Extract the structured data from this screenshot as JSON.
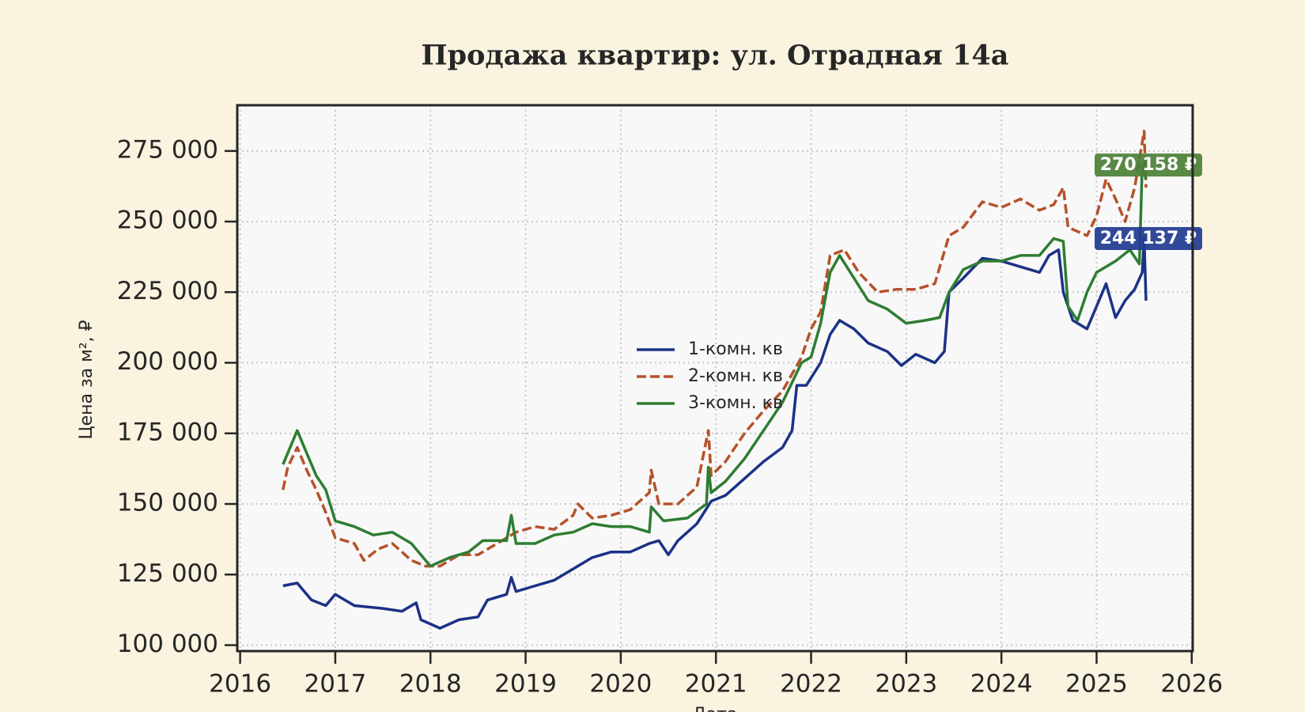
{
  "chart_data": {
    "type": "line",
    "title": "Продажа квартир: ул. Отрадная 14а",
    "x_label": "Дата",
    "y_label": "Цена за м², ₽",
    "xlim": [
      2015.97,
      2026.01
    ],
    "xticks": [
      2016,
      2017,
      2018,
      2019,
      2020,
      2021,
      2022,
      2023,
      2024,
      2025,
      2026
    ],
    "ylim": [
      97900,
      291200
    ],
    "yticks": [
      {
        "value": 100000,
        "label": "100 000"
      },
      {
        "value": 125000,
        "label": "125 000"
      },
      {
        "value": 150000,
        "label": "150 000"
      },
      {
        "value": 175000,
        "label": "175 000"
      },
      {
        "value": 200000,
        "label": "200 000"
      },
      {
        "value": 225000,
        "label": "225 000"
      },
      {
        "value": 250000,
        "label": "250 000"
      },
      {
        "value": 275000,
        "label": "275 000"
      }
    ],
    "grid": true,
    "legend": "center",
    "series": [
      {
        "name": "1-комн. кв",
        "color": "#1c3287",
        "style": "solid",
        "x": [
          2016.45,
          2016.6,
          2016.75,
          2016.9,
          2017.0,
          2017.2,
          2017.5,
          2017.7,
          2017.85,
          2017.9,
          2018.1,
          2018.3,
          2018.5,
          2018.6,
          2018.8,
          2018.85,
          2018.9,
          2019.1,
          2019.3,
          2019.5,
          2019.7,
          2019.9,
          2020.1,
          2020.3,
          2020.4,
          2020.5,
          2020.6,
          2020.8,
          2020.95,
          2021.1,
          2021.3,
          2021.5,
          2021.7,
          2021.8,
          2021.85,
          2021.95,
          2022.1,
          2022.2,
          2022.3,
          2022.45,
          2022.6,
          2022.8,
          2022.95,
          2023.1,
          2023.3,
          2023.4,
          2023.45,
          2023.6,
          2023.8,
          2024.0,
          2024.2,
          2024.4,
          2024.5,
          2024.6,
          2024.65,
          2024.75,
          2024.9,
          2025.0,
          2025.1,
          2025.2,
          2025.3,
          2025.4,
          2025.48,
          2025.5,
          2025.52
        ],
        "values": [
          121000,
          122000,
          116000,
          114000,
          118000,
          114000,
          113000,
          112000,
          115000,
          109000,
          106000,
          109000,
          110000,
          116000,
          118000,
          124000,
          119000,
          121000,
          123000,
          127000,
          131000,
          133000,
          133000,
          136000,
          137000,
          132000,
          137000,
          143000,
          151000,
          153000,
          159000,
          165000,
          170000,
          176000,
          192000,
          192000,
          200000,
          210000,
          215000,
          212000,
          207000,
          204000,
          199000,
          203000,
          200000,
          204000,
          225000,
          230000,
          237000,
          236000,
          234000,
          232000,
          238000,
          240000,
          225000,
          215000,
          212000,
          220000,
          228000,
          216000,
          222000,
          226000,
          232000,
          244000,
          222000
        ]
      },
      {
        "name": "2-комн. кв",
        "color": "#b5522a",
        "style": "dashed",
        "x": [
          2016.45,
          2016.5,
          2016.6,
          2016.7,
          2016.8,
          2016.9,
          2017.0,
          2017.2,
          2017.3,
          2017.45,
          2017.6,
          2017.8,
          2017.95,
          2018.1,
          2018.3,
          2018.5,
          2018.7,
          2018.9,
          2019.1,
          2019.3,
          2019.5,
          2019.55,
          2019.7,
          2019.9,
          2020.1,
          2020.3,
          2020.32,
          2020.4,
          2020.6,
          2020.8,
          2020.92,
          2020.95,
          2021.1,
          2021.3,
          2021.5,
          2021.7,
          2021.9,
          2022.0,
          2022.1,
          2022.2,
          2022.35,
          2022.5,
          2022.7,
          2022.9,
          2023.1,
          2023.3,
          2023.45,
          2023.6,
          2023.8,
          2024.0,
          2024.2,
          2024.4,
          2024.55,
          2024.65,
          2024.7,
          2024.9,
          2025.0,
          2025.1,
          2025.2,
          2025.3,
          2025.4,
          2025.5,
          2025.52
        ],
        "values": [
          155000,
          163000,
          170000,
          162000,
          155000,
          147000,
          138000,
          136000,
          130000,
          134000,
          136000,
          130000,
          128000,
          128000,
          132000,
          132000,
          136000,
          140000,
          142000,
          141000,
          146000,
          150000,
          145000,
          146000,
          148000,
          154000,
          162000,
          150000,
          150000,
          156000,
          176000,
          160000,
          165000,
          175000,
          183000,
          190000,
          202000,
          212000,
          218000,
          238000,
          240000,
          232000,
          225000,
          226000,
          226000,
          228000,
          245000,
          248000,
          257000,
          255000,
          258000,
          254000,
          256000,
          262000,
          248000,
          245000,
          252000,
          265000,
          258000,
          250000,
          262000,
          282000,
          262000
        ]
      },
      {
        "name": "3-комн. кв",
        "color": "#2e7d32",
        "style": "solid",
        "x": [
          2016.45,
          2016.5,
          2016.6,
          2016.7,
          2016.8,
          2016.9,
          2017.0,
          2017.2,
          2017.4,
          2017.6,
          2017.8,
          2018.0,
          2018.2,
          2018.4,
          2018.55,
          2018.8,
          2018.85,
          2018.9,
          2019.1,
          2019.3,
          2019.5,
          2019.7,
          2019.9,
          2020.1,
          2020.3,
          2020.32,
          2020.45,
          2020.7,
          2020.9,
          2020.92,
          2020.95,
          2021.1,
          2021.3,
          2021.5,
          2021.7,
          2021.9,
          2022.0,
          2022.1,
          2022.2,
          2022.3,
          2022.45,
          2022.6,
          2022.8,
          2023.0,
          2023.2,
          2023.35,
          2023.45,
          2023.6,
          2023.8,
          2024.0,
          2024.2,
          2024.4,
          2024.55,
          2024.65,
          2024.7,
          2024.8,
          2024.9,
          2025.0,
          2025.2,
          2025.35,
          2025.45,
          2025.48,
          2025.52
        ],
        "values": [
          164000,
          168000,
          176000,
          168000,
          160000,
          155000,
          144000,
          142000,
          139000,
          140000,
          136000,
          128000,
          131000,
          133000,
          137000,
          137000,
          146000,
          136000,
          136000,
          139000,
          140000,
          143000,
          142000,
          142000,
          140000,
          149000,
          144000,
          145000,
          150000,
          163000,
          154000,
          158000,
          166000,
          176000,
          186000,
          200000,
          202000,
          214000,
          232000,
          238000,
          230000,
          222000,
          219000,
          214000,
          215000,
          216000,
          225000,
          233000,
          236000,
          236000,
          238000,
          238000,
          244000,
          243000,
          220000,
          215000,
          225000,
          232000,
          236000,
          240000,
          235000,
          270000,
          265000
        ]
      }
    ],
    "annotations": [
      {
        "text": "270 158 ₽",
        "value": 270158,
        "color": "#4a7f35"
      },
      {
        "text": "244 137 ₽",
        "value": 244137,
        "color": "#203a8f"
      }
    ]
  }
}
